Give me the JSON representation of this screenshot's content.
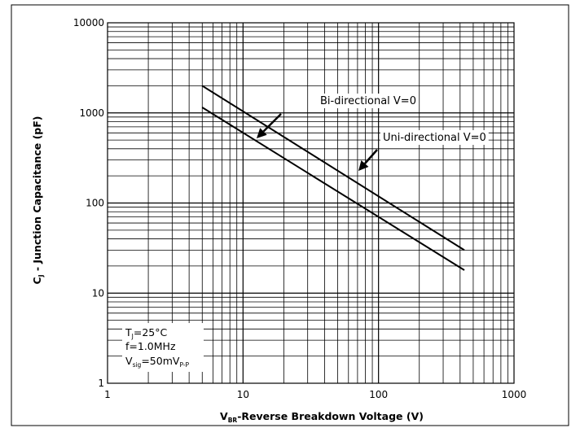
{
  "chart_data": {
    "type": "line",
    "x_scale": "log",
    "y_scale": "log",
    "xlim": [
      1,
      1000
    ],
    "ylim": [
      1,
      10000
    ],
    "grid": true,
    "x_ticks": [
      "1",
      "10",
      "100",
      "1000"
    ],
    "y_ticks": [
      "1",
      "10",
      "100",
      "1000",
      "10000"
    ],
    "xlabel_main": "V",
    "xlabel_sub": "BR",
    "xlabel_rest": "-Reverse Breakdown Voltage (V)",
    "ylabel_main": "C",
    "ylabel_sub": "J",
    "ylabel_rest": " - Junction Capacitance (pF)",
    "series": [
      {
        "name": "Bi-directional V=0",
        "x": [
          5,
          430
        ],
        "y": [
          2000,
          30
        ]
      },
      {
        "name": "Uni-directional V=0",
        "x": [
          5,
          430
        ],
        "y": [
          1150,
          18
        ]
      }
    ],
    "annotations": [
      {
        "text": "Bi-directional V=0",
        "target_series": 1,
        "arrow_to": [
          12,
          520
        ]
      },
      {
        "text": "Uni-directional V=0",
        "target_series": 0,
        "arrow_to": [
          65,
          190
        ]
      }
    ],
    "conditions": {
      "tj_main": "T",
      "tj_sub": "J",
      "tj_rest": "=25°C",
      "freq": "f=1.0MHz",
      "vsig_main": "V",
      "vsig_sub": "sig",
      "vsig_mid": "=50mV",
      "vsig_sub2": "P-P"
    }
  }
}
